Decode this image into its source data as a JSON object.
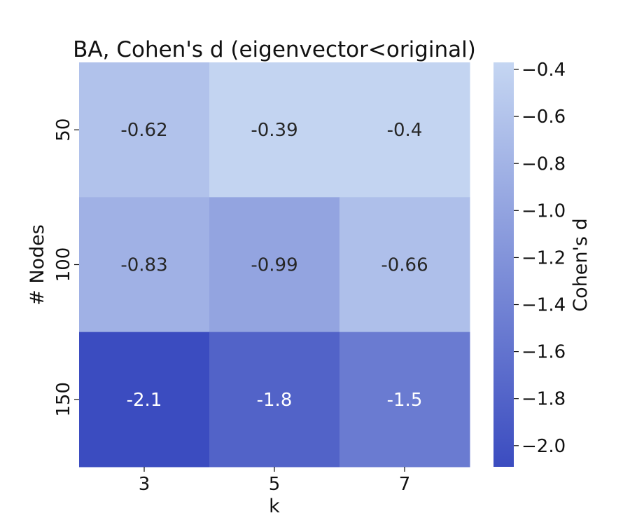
{
  "chart_data": {
    "type": "heatmap",
    "title": "BA, Cohen's d (eigenvector<original)",
    "xlabel": "k",
    "ylabel": "# Nodes",
    "x_categories": [
      "3",
      "5",
      "7"
    ],
    "y_categories": [
      "50",
      "100",
      "150"
    ],
    "values": [
      [
        -0.62,
        -0.39,
        -0.4
      ],
      [
        -0.83,
        -0.99,
        -0.66
      ],
      [
        -2.1,
        -1.8,
        -1.5
      ]
    ],
    "cell_labels": [
      [
        "-0.62",
        "-0.39",
        "-0.4"
      ],
      [
        "-0.83",
        "-0.99",
        "-0.66"
      ],
      [
        "-2.1",
        "-1.8",
        "-1.5"
      ]
    ],
    "colorbar": {
      "label": "Cohen's d",
      "range": [
        -2.09,
        -0.37
      ],
      "ticks": [
        -0.4,
        -0.6,
        -0.8,
        -1.0,
        -1.2,
        -1.4,
        -1.6,
        -1.8,
        -2.0
      ],
      "tick_labels": [
        "−0.4",
        "−0.6",
        "−0.8",
        "−1.0",
        "−1.2",
        "−1.4",
        "−1.6",
        "−1.8",
        "−2.0"
      ],
      "color_low": "#3b4cc0",
      "color_high": "#c5d6f2"
    },
    "grid": false
  }
}
